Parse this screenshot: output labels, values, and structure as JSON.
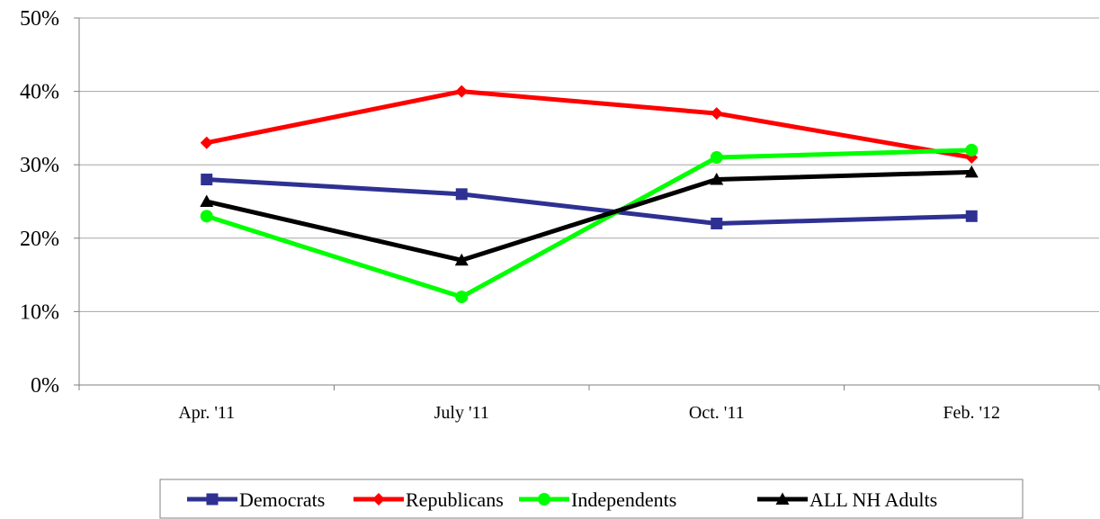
{
  "chart_data": {
    "type": "line",
    "categories": [
      "Apr. '11",
      "July '11",
      "Oct. '11",
      "Feb. '12"
    ],
    "ylim": [
      0,
      50
    ],
    "yticks": [
      "0%",
      "10%",
      "20%",
      "30%",
      "40%",
      "50%"
    ],
    "ytick_values": [
      0,
      10,
      20,
      30,
      40,
      50
    ],
    "grid": true,
    "legend_position": "bottom",
    "series": [
      {
        "name": "Democrats",
        "values": [
          28,
          26,
          22,
          23
        ],
        "color": "#2E3192",
        "marker": "square"
      },
      {
        "name": "Republicans",
        "values": [
          33,
          40,
          37,
          31
        ],
        "color": "#FF0000",
        "marker": "diamond"
      },
      {
        "name": "Independents",
        "values": [
          23,
          12,
          31,
          32
        ],
        "color": "#00FF00",
        "marker": "circle"
      },
      {
        "name": "ALL NH Adults",
        "values": [
          25,
          17,
          28,
          29
        ],
        "color": "#000000",
        "marker": "triangle"
      }
    ]
  }
}
